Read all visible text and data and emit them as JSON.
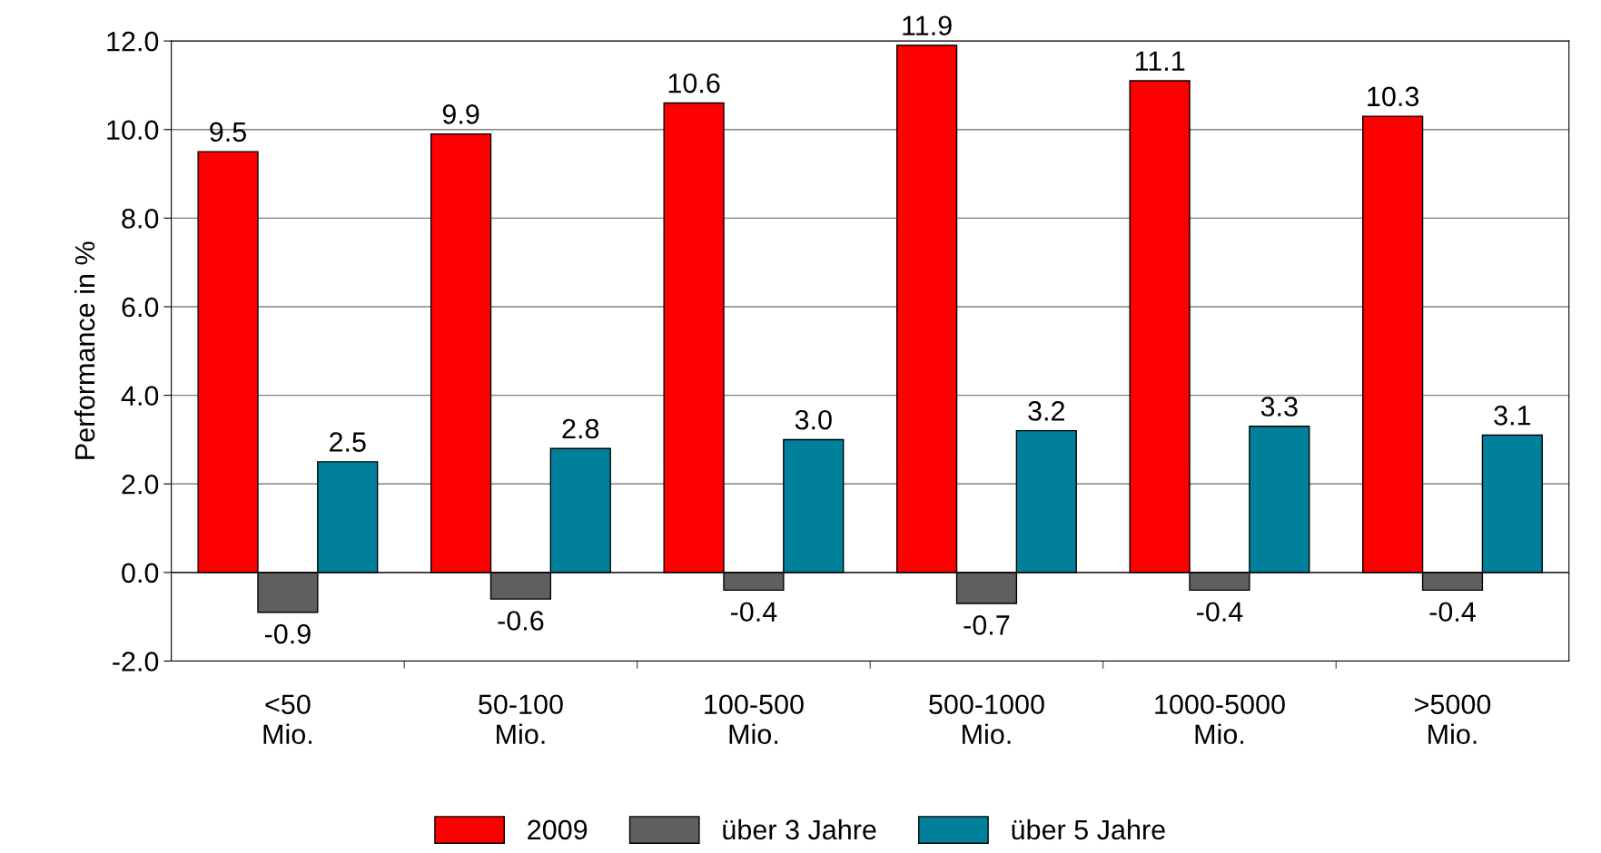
{
  "chart_data": {
    "type": "bar",
    "ylabel": "Performance in %",
    "categories": [
      "<50\nMio.",
      "50-100\nMio.",
      "100-500\nMio.",
      "500-1000\nMio.",
      "1000-5000\nMio.",
      ">5000\nMio."
    ],
    "series": [
      {
        "name": "2009",
        "color": "#ff0000",
        "values": [
          9.5,
          9.9,
          10.6,
          11.9,
          11.1,
          10.3
        ],
        "value_labels": [
          "9.5",
          "9.9",
          "10.6",
          "11.9",
          "11.1",
          "10.3"
        ]
      },
      {
        "name": "über 3 Jahre",
        "color": "#5f5f5f",
        "values": [
          -0.9,
          -0.6,
          -0.4,
          -0.7,
          -0.4,
          -0.4
        ],
        "value_labels": [
          "-0.9",
          "-0.6",
          "-0.4",
          "-0.7",
          "-0.4",
          "-0.4"
        ]
      },
      {
        "name": "über 5 Jahre",
        "color": "#00809a",
        "values": [
          2.5,
          2.8,
          3.0,
          3.2,
          3.3,
          3.1
        ],
        "value_labels": [
          "2.5",
          "2.8",
          "3.0",
          "3.2",
          "3.3",
          "3.1"
        ]
      }
    ],
    "ylim": [
      -2,
      12
    ],
    "yticks": [
      {
        "value": -2,
        "label": "-2.0"
      },
      {
        "value": 0,
        "label": "0.0"
      },
      {
        "value": 2,
        "label": "2.0"
      },
      {
        "value": 4,
        "label": "4.0"
      },
      {
        "value": 6,
        "label": "6.0"
      },
      {
        "value": 8,
        "label": "8.0"
      },
      {
        "value": 10,
        "label": "10.0"
      },
      {
        "value": 12,
        "label": "12.0"
      }
    ],
    "grid": "y",
    "legend": "bottom"
  }
}
